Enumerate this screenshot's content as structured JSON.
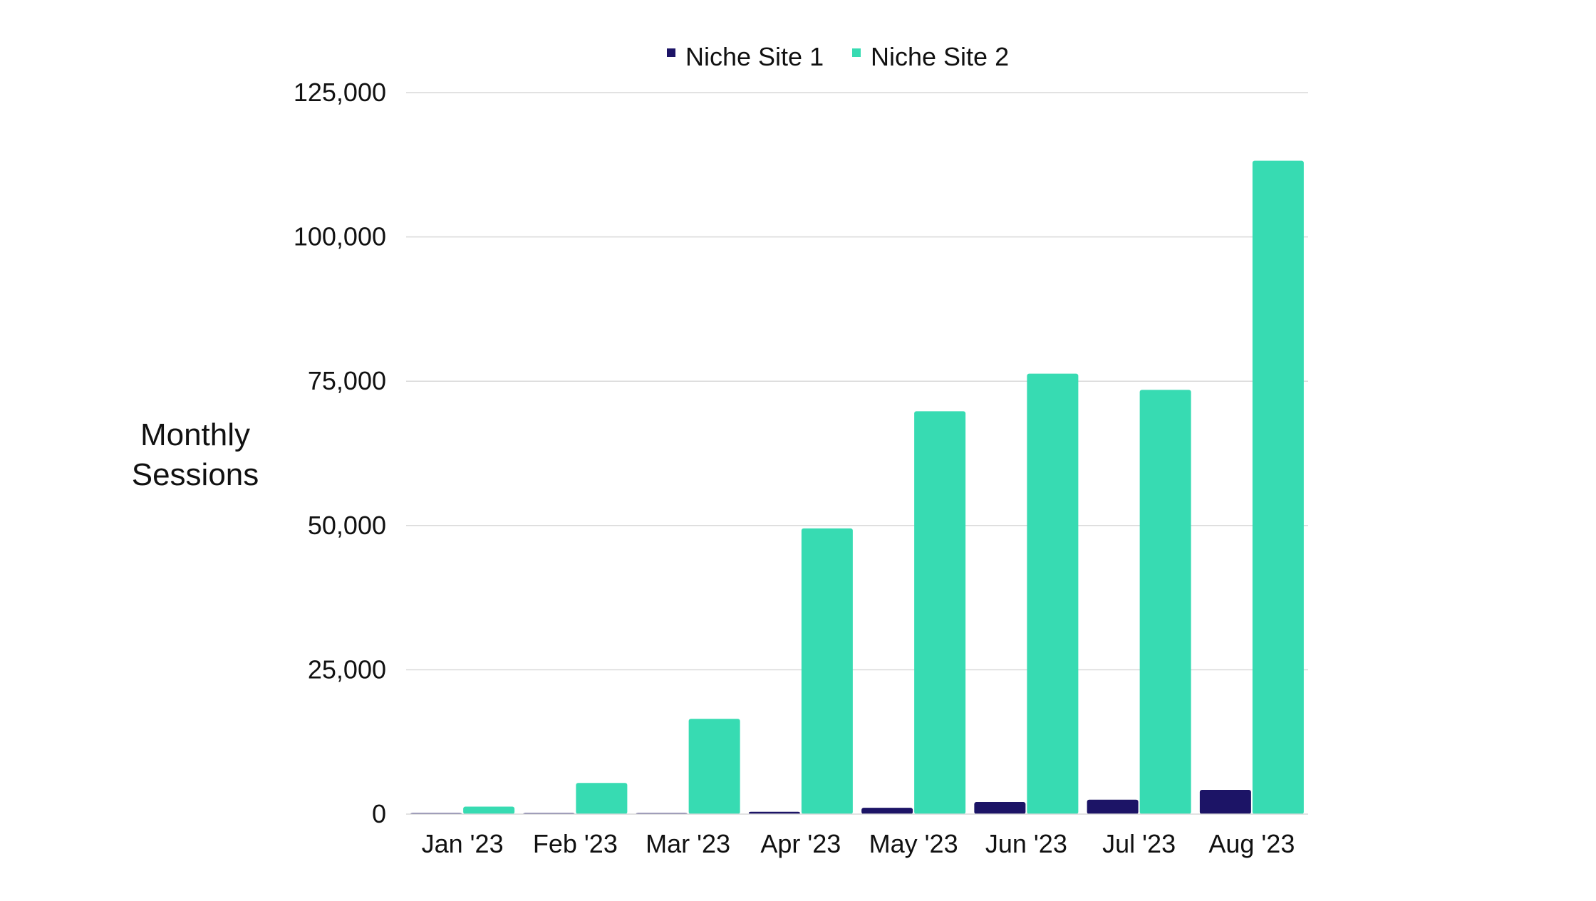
{
  "chart_data": {
    "type": "bar",
    "title": "",
    "xlabel": "",
    "ylabel_lines": [
      "Monthly",
      "Sessions"
    ],
    "categories": [
      "Jan '23",
      "Feb '23",
      "Mar '23",
      "Apr '23",
      "May '23",
      "Jun '23",
      "Jul '23",
      "Aug '23"
    ],
    "series": [
      {
        "name": "Niche Site 1",
        "color": "#1c1466",
        "values": [
          150,
          120,
          160,
          400,
          1100,
          2100,
          2500,
          4200
        ]
      },
      {
        "name": "Niche Site 2",
        "color": "#37dbb2",
        "values": [
          1300,
          5400,
          16500,
          49500,
          69800,
          76300,
          73500,
          113200
        ]
      }
    ],
    "ylim": [
      0,
      125000
    ],
    "yticks": [
      0,
      25000,
      50000,
      75000,
      100000,
      125000
    ],
    "ytick_labels": [
      "0",
      "25,000",
      "50,000",
      "75,000",
      "100,000",
      "125,000"
    ],
    "grid": true,
    "gridline_color": "#d9d9d9",
    "legend_position": "top-center"
  }
}
